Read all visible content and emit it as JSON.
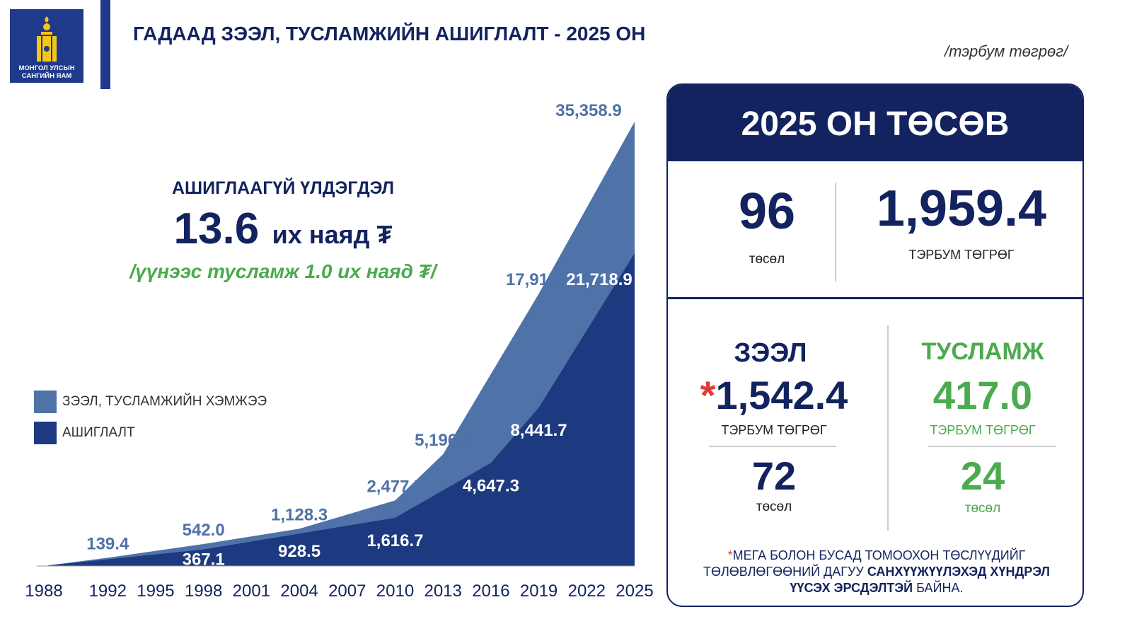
{
  "logo": {
    "text_line1": "МОНГОЛ УЛСЫН",
    "text_line2": "САНГИЙН ЯАМ"
  },
  "header": {
    "title": "ГАДААД ЗЭЭЛ, ТУСЛАМЖИЙН АШИГЛАЛТ - 2025 ОН",
    "unit": "/тэрбум төгрөг/"
  },
  "summary": {
    "label": "АШИГЛААГҮЙ ҮЛДЭГДЭЛ",
    "value": "13.6",
    "value_unit": "их наяд ₮",
    "note": "/үүнээс тусламж 1.0 их наяд ₮/"
  },
  "colors": {
    "total": "#4f72a8",
    "used": "#1d3a80",
    "navy": "#13235f",
    "green": "#4caa4f",
    "red": "#e53935"
  },
  "chart_data": {
    "type": "area",
    "x_ticks": [
      "1988",
      "1992",
      "1995",
      "1998",
      "2001",
      "2004",
      "2007",
      "2010",
      "2013",
      "2016",
      "2019",
      "2022",
      "2025"
    ],
    "xlim": [
      1988,
      2025
    ],
    "legend": [
      "ЗЭЭЛ, ТУСЛАМЖИЙН ХЭМЖЭЭ",
      "АШИГЛАЛТ"
    ],
    "legend_position": "left",
    "series": [
      {
        "name": "ЗЭЭЛ, ТУСЛАМЖИЙН ХЭМЖЭЭ",
        "x": [
          1988,
          1992,
          1998,
          2004,
          2010,
          2013,
          2019,
          2025
        ],
        "values": [
          0,
          139.4,
          542.0,
          1128.3,
          2477.7,
          5196.0,
          17915.9,
          35358.9
        ],
        "labels": [
          "",
          "139.4",
          "542.0",
          "1,128.3",
          "2,477.7",
          "5,196.0",
          "17,915.9",
          "35,358.9"
        ]
      },
      {
        "name": "АШИГЛАЛТ",
        "x": [
          1988,
          1998,
          2004,
          2010,
          2016,
          2019,
          2025
        ],
        "values": [
          0,
          367.1,
          928.5,
          1616.7,
          4647.3,
          8441.7,
          21718.9
        ],
        "labels": [
          "",
          "367.1",
          "928.5",
          "1,616.7",
          "4,647.3",
          "8,441.7",
          "21,718.9"
        ]
      }
    ]
  },
  "budget": {
    "title": "2025 ОН ТӨСӨВ",
    "projects": "96",
    "projects_label": "төсөл",
    "amount": "1,959.4",
    "amount_label": "ТЭРБУМ ТӨГРӨГ",
    "loan": {
      "title": "ЗЭЭЛ",
      "star": "*",
      "amount": "1,542.4",
      "amount_label": "ТЭРБУМ ТӨГРӨГ",
      "projects": "72",
      "projects_label": "төсөл"
    },
    "aid": {
      "title": "ТУСЛАМЖ",
      "amount": "417.0",
      "amount_label": "ТЭРБУМ ТӨГРӨГ",
      "projects": "24",
      "projects_label": "төсөл"
    },
    "footnote": {
      "star": "*",
      "part1": "МЕГА БОЛОН БУСАД ТОМООХОН ТӨСЛҮҮДИЙГ ТӨЛӨВЛӨГӨӨНИЙ ДАГУУ ",
      "bold": "САНХҮҮЖҮҮЛЭХЭД ХҮНДРЭЛ ҮҮСЭХ ЭРСДЭЛТЭЙ",
      "part2": " БАЙНА."
    }
  }
}
